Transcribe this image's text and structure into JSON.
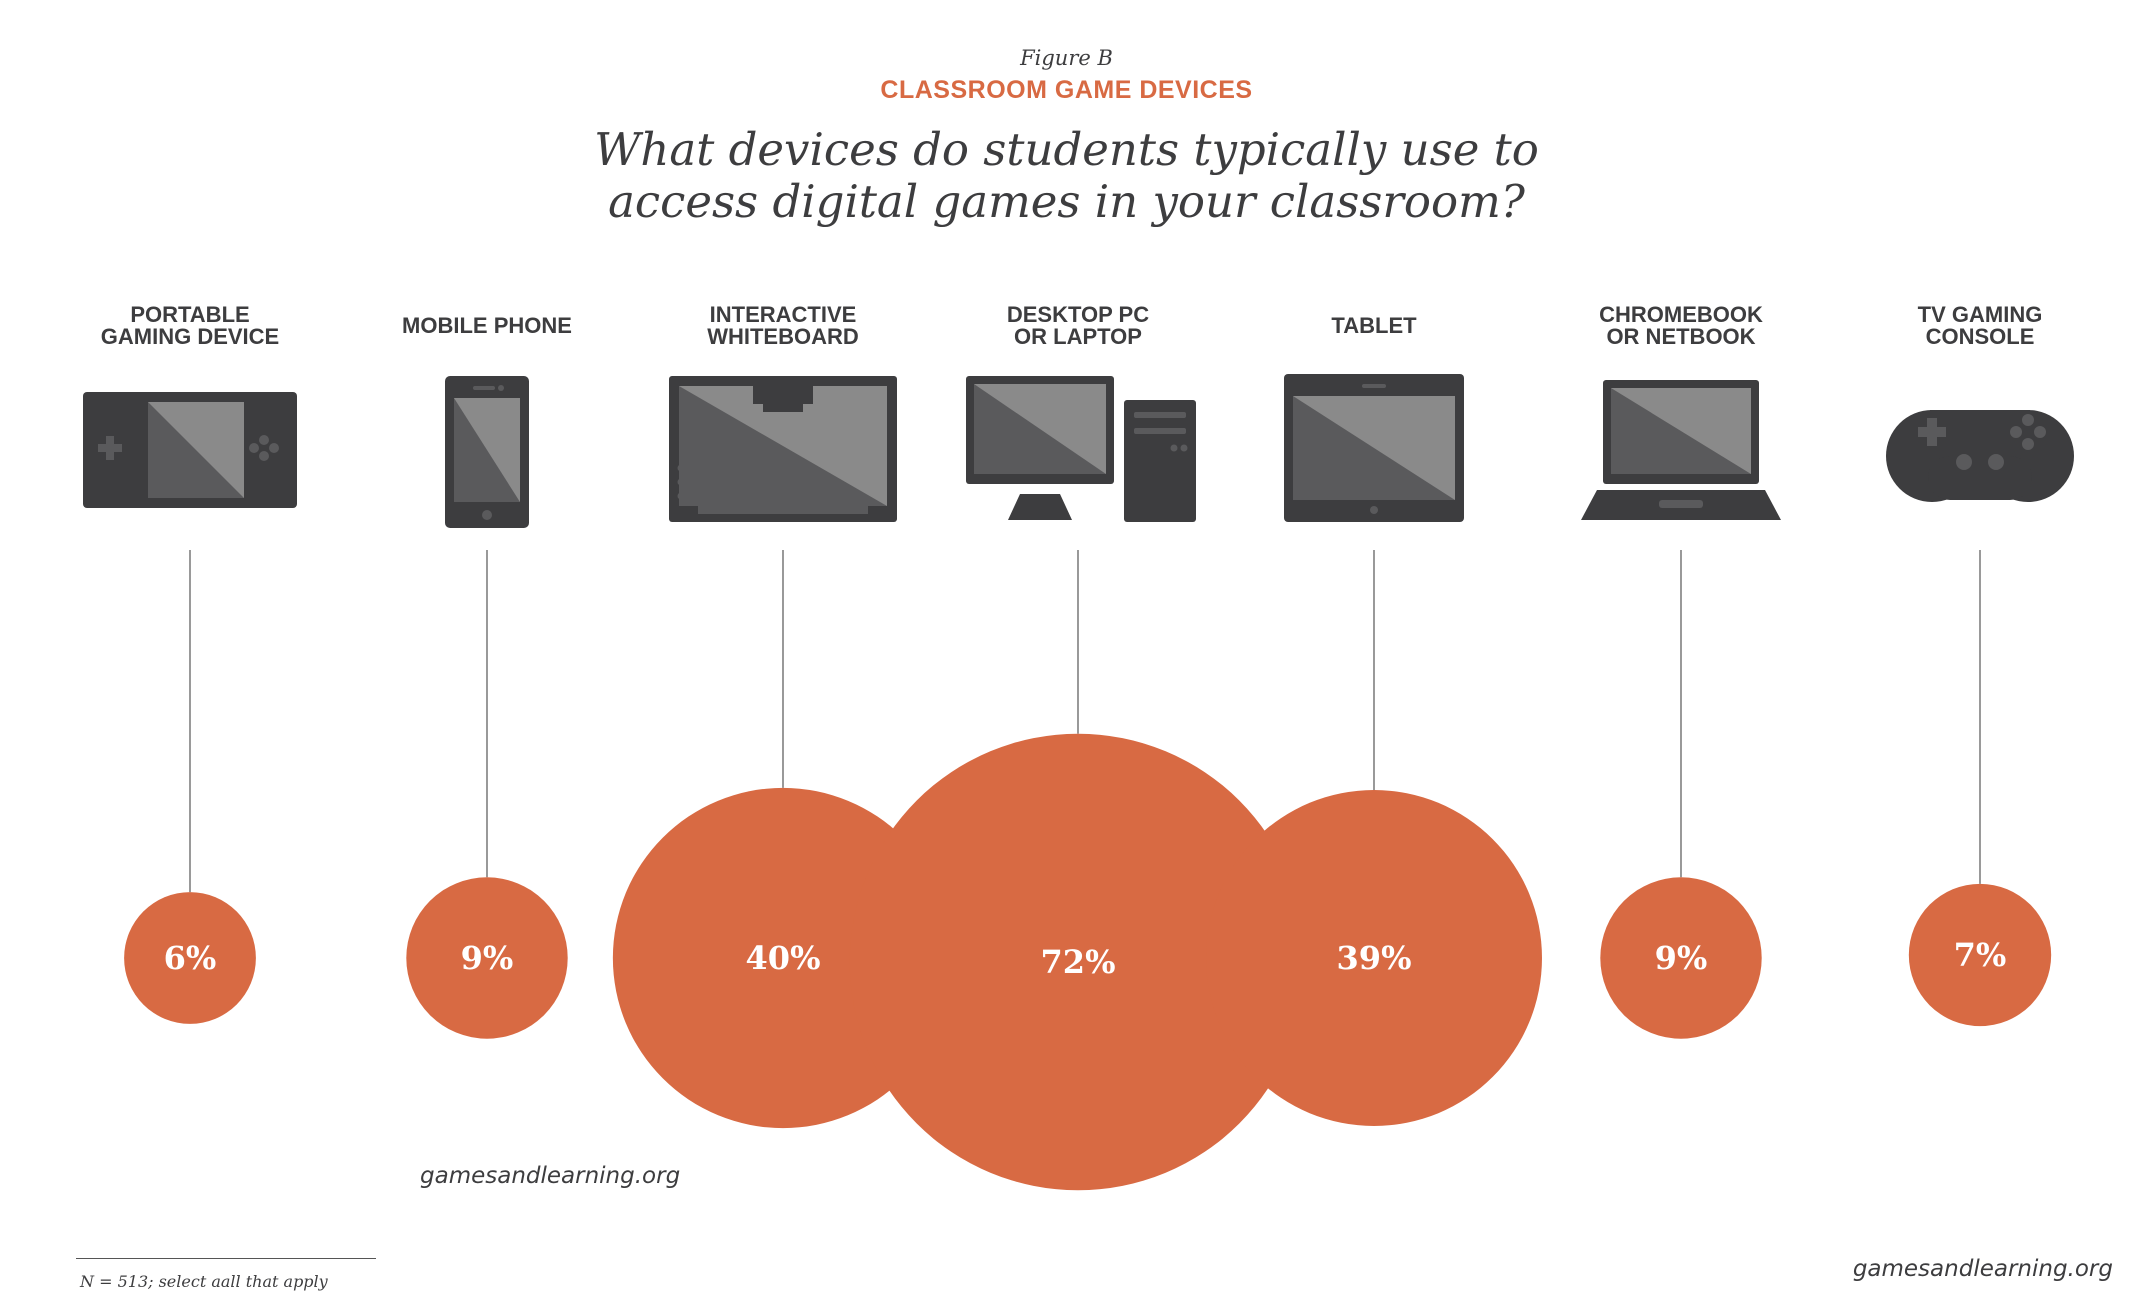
{
  "figure": {
    "label": "Figure B",
    "title": "CLASSROOM GAME DEVICES",
    "question_line1": "What devices do students typically use to",
    "question_line2": "access digital games in your classroom?"
  },
  "colors": {
    "accent": "#d86a43",
    "icon": "#3d3d3f",
    "text": "#3d3d3f"
  },
  "chart_data": {
    "type": "bubble",
    "title": "CLASSROOM GAME DEVICES",
    "unit": "%",
    "items": [
      {
        "label_lines": [
          "PORTABLE",
          "GAMING DEVICE"
        ],
        "value": 6,
        "display": "6%",
        "icon": "portable-gaming-device-icon"
      },
      {
        "label_lines": [
          "MOBILE PHONE"
        ],
        "value": 9,
        "display": "9%",
        "icon": "mobile-phone-icon"
      },
      {
        "label_lines": [
          "INTERACTIVE",
          "WHITEBOARD"
        ],
        "value": 40,
        "display": "40%",
        "icon": "interactive-whiteboard-icon"
      },
      {
        "label_lines": [
          "DESKTOP PC",
          "OR LAPTOP"
        ],
        "value": 72,
        "display": "72%",
        "icon": "desktop-pc-icon"
      },
      {
        "label_lines": [
          "TABLET"
        ],
        "value": 39,
        "display": "39%",
        "icon": "tablet-icon"
      },
      {
        "label_lines": [
          "CHROMEBOOK",
          "OR NETBOOK"
        ],
        "value": 9,
        "display": "9%",
        "icon": "laptop-icon"
      },
      {
        "label_lines": [
          "TV GAMING",
          "CONSOLE"
        ],
        "value": 7,
        "display": "7%",
        "icon": "game-controller-icon"
      }
    ]
  },
  "footer": {
    "site_mid": "gamesandlearning.org",
    "site_corner": "gamesandlearning.org",
    "note": "N = 513; select aall that apply"
  }
}
